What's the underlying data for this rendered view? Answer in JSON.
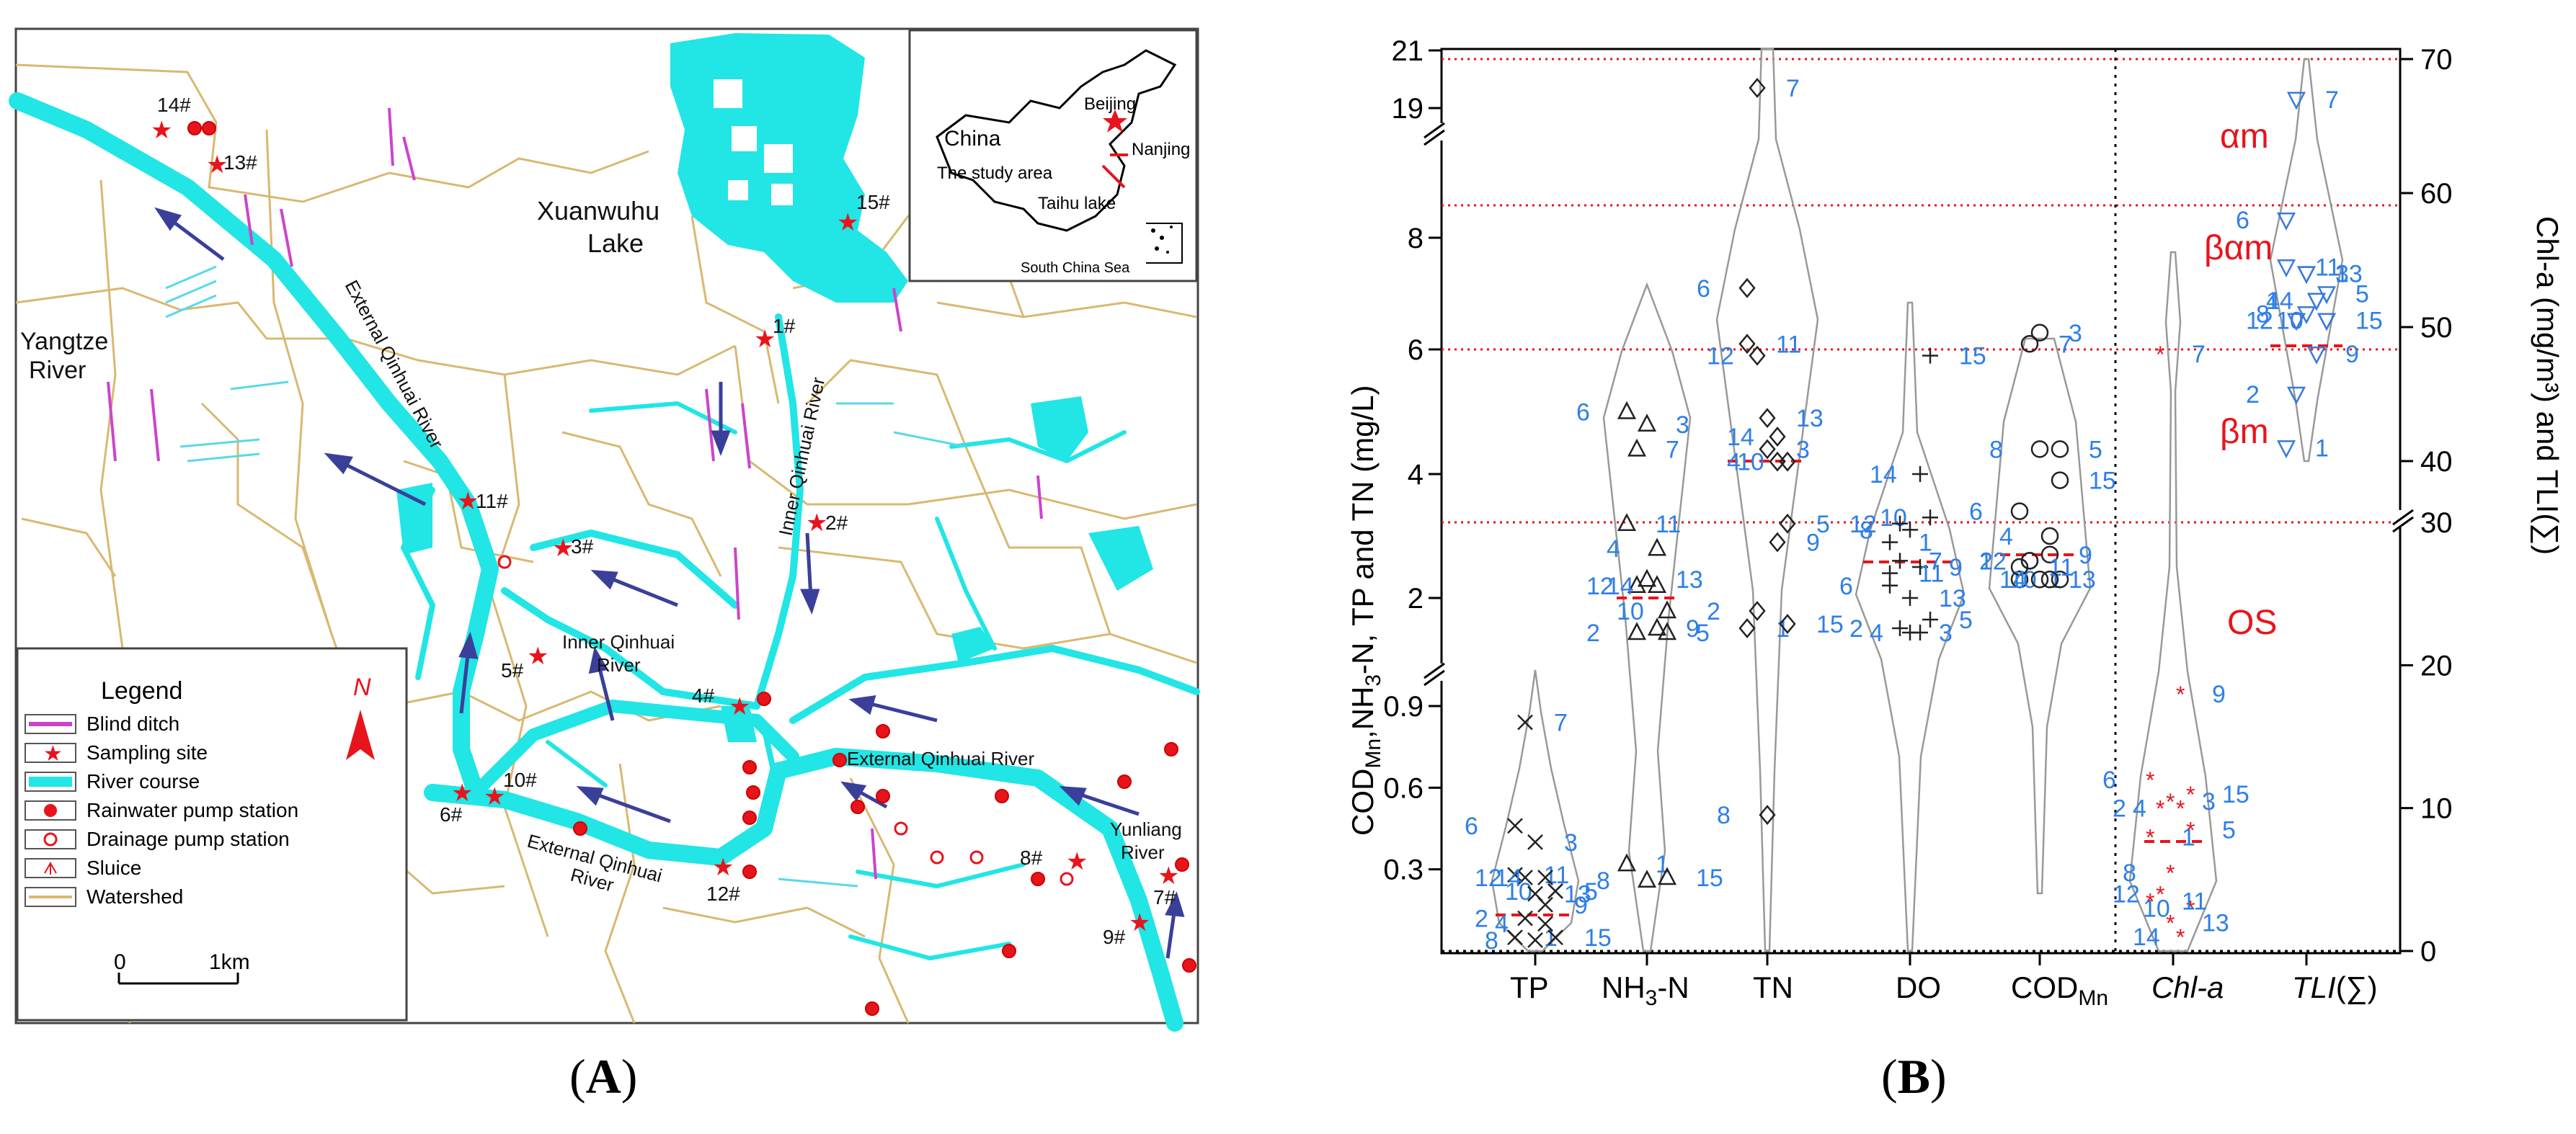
{
  "map": {
    "places": {
      "lake": "Xuanwuhu",
      "lake2": "Lake",
      "yangtze1": "Yangtze",
      "yangtze2": "River",
      "ext_qinhuai_v": "External Qinhuai River",
      "inner_qinhuai_v": "Inner Qinhuai River",
      "inner_qinhuai_1": "Inner Qinhuai",
      "inner_qinhuai_2": "River",
      "ext_qinhuai_mid": "External Qinhuai River",
      "ext_qinhuai_bottom": "External Qinhuai",
      "ext_qinhuai_bottom2": "River",
      "yunliang1": "Yunliang",
      "yunliang2": "River"
    },
    "inset": {
      "china": "China",
      "beijing": "Beijing",
      "nanjing": "Nanjing",
      "study_area": "The study area",
      "taihu": "Taihu lake",
      "scs": "South China Sea"
    },
    "sites": [
      "1#",
      "2#",
      "3#",
      "4#",
      "5#",
      "6#",
      "7#",
      "8#",
      "9#",
      "10#",
      "11#",
      "12#",
      "13#",
      "14#",
      "15#"
    ],
    "legend": {
      "title": "Legend",
      "north": "N",
      "items": [
        "Blind ditch",
        "Sampling site",
        "River course",
        "Rainwater pump station",
        "Drainage pump station",
        "Sluice",
        "Watershed"
      ]
    },
    "scale": {
      "zero": "0",
      "one": "1km"
    },
    "colors": {
      "river": "#22e5e5",
      "ditch": "#cc44cc",
      "watershed": "#d9b870",
      "site": "#e8141c",
      "arrow": "#3a3f9a"
    }
  },
  "chart_data": {
    "type": "violin-scatter",
    "ylabel_left": "COD",
    "ylabel_left_sub": "Mn",
    "ylabel_left_rest": ",NH",
    "ylabel_left_sub2": "3",
    "ylabel_left_rest2": "-N, TP and TN  (mg/L)",
    "ylabel_right": "Chl-a (mg/m³) and TLI(∑)",
    "categories": [
      "TP",
      "NH3-N",
      "TN",
      "DO",
      "CODMn",
      "Chl-a",
      "TLI(∑)"
    ],
    "category_labels": {
      "tp": "TP",
      "nh3_main": "NH",
      "nh3_sub": "3",
      "nh3_rest": "-N",
      "tn": "TN",
      "do": "DO",
      "cod_main": "COD",
      "cod_sub": "Mn",
      "chla": "Chl-a",
      "tli": "TLI",
      "tli_rest": "(∑)"
    },
    "y_left_ticks_low": [
      "0.3",
      "0.6",
      "0.9"
    ],
    "y_left_ticks_high": [
      "2",
      "4",
      "6",
      "8",
      "19",
      "21"
    ],
    "y_right_ticks_low": [
      "0",
      "10",
      "20",
      "30"
    ],
    "y_right_ticks_high": [
      "40",
      "50",
      "60",
      "70"
    ],
    "trophic_zones": [
      "αm",
      "βαm",
      "βm",
      "OS"
    ],
    "series": [
      {
        "name": "TP",
        "points": [
          {
            "site": "1",
            "y": 0.05
          },
          {
            "site": "2",
            "y": 0.12
          },
          {
            "site": "3",
            "y": 0.4
          },
          {
            "site": "4",
            "y": 0.1
          },
          {
            "site": "5",
            "y": 0.22
          },
          {
            "site": "6",
            "y": 0.46
          },
          {
            "site": "7",
            "y": 0.84
          },
          {
            "site": "8",
            "y": 0.04
          },
          {
            "site": "9",
            "y": 0.17
          },
          {
            "site": "10",
            "y": 0.22
          },
          {
            "site": "11",
            "y": 0.28
          },
          {
            "site": "12",
            "y": 0.27
          },
          {
            "site": "13",
            "y": 0.21
          },
          {
            "site": "14",
            "y": 0.27
          },
          {
            "site": "15",
            "y": 0.05
          }
        ]
      },
      {
        "name": "NH3-N",
        "points": [
          {
            "site": "1",
            "y": 0.32
          },
          {
            "site": "2",
            "y": 1.2
          },
          {
            "site": "3",
            "y": 4.8
          },
          {
            "site": "4",
            "y": 2.8
          },
          {
            "site": "5",
            "y": 1.2
          },
          {
            "site": "6",
            "y": 5.0
          },
          {
            "site": "7",
            "y": 4.4
          },
          {
            "site": "8",
            "y": 0.26
          },
          {
            "site": "9",
            "y": 1.3
          },
          {
            "site": "10",
            "y": 1.7
          },
          {
            "site": "11",
            "y": 3.2
          },
          {
            "site": "12",
            "y": 2.2
          },
          {
            "site": "13",
            "y": 2.3
          },
          {
            "site": "14",
            "y": 2.2
          },
          {
            "site": "15",
            "y": 0.27
          }
        ]
      },
      {
        "name": "TN",
        "points": [
          {
            "site": "1",
            "y": 1.3
          },
          {
            "site": "2",
            "y": 1.7
          },
          {
            "site": "3",
            "y": 4.4
          },
          {
            "site": "4",
            "y": 4.2
          },
          {
            "site": "5",
            "y": 3.2
          },
          {
            "site": "6",
            "y": 7.1
          },
          {
            "site": "7",
            "y": 19.7
          },
          {
            "site": "8",
            "y": 0.5
          },
          {
            "site": "9",
            "y": 2.9
          },
          {
            "site": "10",
            "y": 4.2
          },
          {
            "site": "11",
            "y": 6.1
          },
          {
            "site": "12",
            "y": 5.9
          },
          {
            "site": "13",
            "y": 4.9
          },
          {
            "site": "14",
            "y": 4.6
          },
          {
            "site": "15",
            "y": 1.4
          }
        ]
      },
      {
        "name": "DO",
        "points": [
          {
            "site": "1",
            "y": 2.9
          },
          {
            "site": "2",
            "y": 1.3
          },
          {
            "site": "3",
            "y": 1.2
          },
          {
            "site": "4",
            "y": 1.2
          },
          {
            "site": "5",
            "y": 1.5
          },
          {
            "site": "6",
            "y": 2.2
          },
          {
            "site": "7",
            "y": 2.6
          },
          {
            "site": "8",
            "y": 3.1
          },
          {
            "site": "9",
            "y": 2.5
          },
          {
            "site": "10",
            "y": 3.3
          },
          {
            "site": "11",
            "y": 2.4
          },
          {
            "site": "12",
            "y": 3.2
          },
          {
            "site": "13",
            "y": 2.0
          },
          {
            "site": "14",
            "y": 4.0
          },
          {
            "site": "15",
            "y": 5.9
          }
        ]
      },
      {
        "name": "CODMn",
        "points": [
          {
            "site": "1",
            "y": 2.3
          },
          {
            "site": "2",
            "y": 2.6
          },
          {
            "site": "3",
            "y": 6.3
          },
          {
            "site": "4",
            "y": 3.0
          },
          {
            "site": "5",
            "y": 4.4
          },
          {
            "site": "6",
            "y": 3.4
          },
          {
            "site": "7",
            "y": 6.1
          },
          {
            "site": "8",
            "y": 4.4
          },
          {
            "site": "9",
            "y": 2.7
          },
          {
            "site": "10",
            "y": 2.3
          },
          {
            "site": "11",
            "y": 2.5
          },
          {
            "site": "12",
            "y": 2.6
          },
          {
            "site": "13",
            "y": 2.3
          },
          {
            "site": "14",
            "y": 2.3
          },
          {
            "site": "15",
            "y": 3.9
          }
        ]
      },
      {
        "name": "Chl-a",
        "points": [
          {
            "site": "1",
            "y": 8.0
          },
          {
            "site": "2",
            "y": 10.0
          },
          {
            "site": "3",
            "y": 10.5
          },
          {
            "site": "4",
            "y": 10.0
          },
          {
            "site": "5",
            "y": 8.5
          },
          {
            "site": "6",
            "y": 12.0
          },
          {
            "site": "7",
            "y": 48.0
          },
          {
            "site": "8",
            "y": 5.5
          },
          {
            "site": "9",
            "y": 18.0
          },
          {
            "site": "10",
            "y": 3.0
          },
          {
            "site": "11",
            "y": 3.5
          },
          {
            "site": "12",
            "y": 4.0
          },
          {
            "site": "13",
            "y": 2.0
          },
          {
            "site": "14",
            "y": 1.0
          },
          {
            "site": "15",
            "y": 11.0
          }
        ]
      },
      {
        "name": "TLI",
        "points": [
          {
            "site": "1",
            "y": 41.0
          },
          {
            "site": "2",
            "y": 45.0
          },
          {
            "site": "3",
            "y": 54.0
          },
          {
            "site": "4",
            "y": 52.0
          },
          {
            "site": "5",
            "y": 52.5
          },
          {
            "site": "6",
            "y": 58.0
          },
          {
            "site": "7",
            "y": 67.0
          },
          {
            "site": "8",
            "y": 51.0
          },
          {
            "site": "9",
            "y": 48.0
          },
          {
            "site": "10",
            "y": 50.5
          },
          {
            "site": "11",
            "y": 54.5
          },
          {
            "site": "12",
            "y": 50.5
          },
          {
            "site": "13",
            "y": 54.0
          },
          {
            "site": "14",
            "y": 52.0
          },
          {
            "site": "15",
            "y": 50.5
          }
        ]
      }
    ],
    "median_lines": [
      "TP",
      "NH3-N",
      "TN",
      "DO",
      "CODMn",
      "Chl-a",
      "TLI"
    ]
  },
  "panels": {
    "a": "A",
    "b": "B"
  }
}
